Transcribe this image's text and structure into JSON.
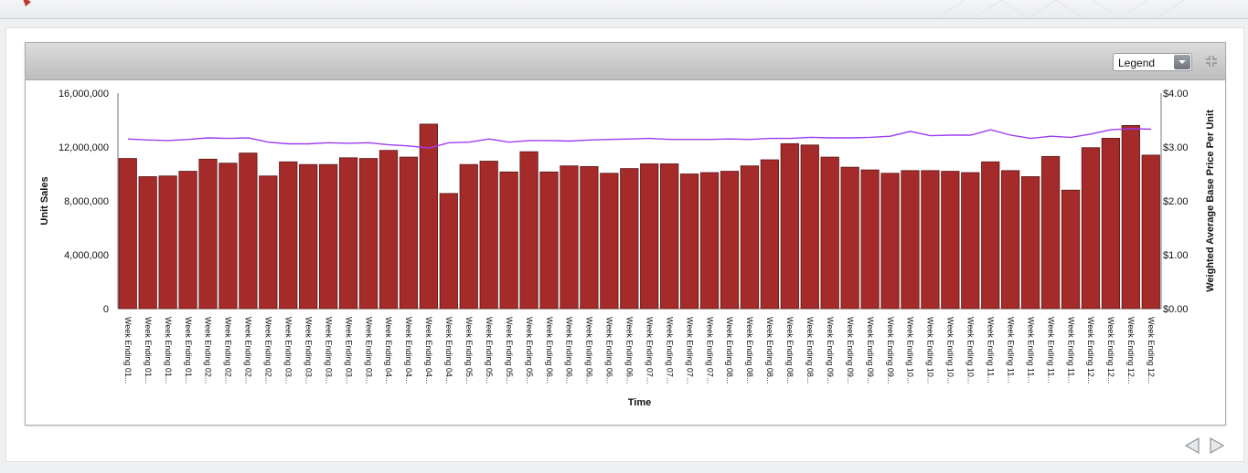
{
  "header": {
    "icon": "app-logo-icon"
  },
  "panel": {
    "legend_select": "Legend",
    "collapse_icon": "collapse-icon"
  },
  "colors": {
    "bar": "#a52a2a",
    "line": "#9b3cf2",
    "axis": "#777777"
  },
  "nav": {
    "prev_icon": "prev-arrow-icon",
    "next_icon": "next-arrow-icon"
  },
  "chart_data": {
    "type": "bar",
    "xlabel": "Time",
    "ylabel": "Unit Sales",
    "y2label": "Weighted Average Base Price Per Unit",
    "ylim": [
      0,
      16000000
    ],
    "y2lim": [
      0,
      4
    ],
    "yticks": [
      "16,000,000",
      "12,000,000",
      "8,000,000",
      "4,000,000",
      "0"
    ],
    "y2ticks": [
      "$4.00",
      "$3.00",
      "$2.00",
      "$1.00",
      "$0.00"
    ],
    "legend": "hidden",
    "categories": [
      "Week Ending 01...",
      "Week Ending 01...",
      "Week Ending 01...",
      "Week Ending 01...",
      "Week Ending 02...",
      "Week Ending 02...",
      "Week Ending 02...",
      "Week Ending 02...",
      "Week Ending 03...",
      "Week Ending 03...",
      "Week Ending 03...",
      "Week Ending 03...",
      "Week Ending 03...",
      "Week Ending 04...",
      "Week Ending 04...",
      "Week Ending 04...",
      "Week Ending 04...",
      "Week Ending 05...",
      "Week Ending 05...",
      "Week Ending 05...",
      "Week Ending 05...",
      "Week Ending 06...",
      "Week Ending 06...",
      "Week Ending 06...",
      "Week Ending 06...",
      "Week Ending 06...",
      "Week Ending 07...",
      "Week Ending 07...",
      "Week Ending 07...",
      "Week Ending 07...",
      "Week Ending 08...",
      "Week Ending 08...",
      "Week Ending 08...",
      "Week Ending 08...",
      "Week Ending 08...",
      "Week Ending 09...",
      "Week Ending 09...",
      "Week Ending 09...",
      "Week Ending 09...",
      "Week Ending 10...",
      "Week Ending 10...",
      "Week Ending 10...",
      "Week Ending 10...",
      "Week Ending 11...",
      "Week Ending 11...",
      "Week Ending 11...",
      "Week Ending 11...",
      "Week Ending 11...",
      "Week Ending 12...",
      "Week Ending 12...",
      "Week Ending 12...",
      "Week Ending 12..."
    ],
    "series": [
      {
        "type": "bar",
        "values": [
          11150000,
          9800000,
          9850000,
          10200000,
          11100000,
          10800000,
          11550000,
          9850000,
          10900000,
          10700000,
          10700000,
          11200000,
          11150000,
          11750000,
          11250000,
          13700000,
          8550000,
          10700000,
          10950000,
          10150000,
          11650000,
          10150000,
          10600000,
          10550000,
          10050000,
          10400000,
          10750000,
          10750000,
          10000000,
          10100000,
          10200000,
          10600000,
          11050000,
          12250000,
          12150000,
          11250000,
          10500000,
          10300000,
          10050000,
          10250000,
          10250000,
          10200000,
          10100000,
          10900000,
          10250000,
          9800000,
          11300000,
          8800000,
          11950000,
          12650000,
          13600000,
          11400000
        ]
      },
      {
        "type": "line",
        "axis": "right",
        "values": [
          3.15,
          3.13,
          3.12,
          3.14,
          3.17,
          3.16,
          3.17,
          3.09,
          3.06,
          3.06,
          3.08,
          3.07,
          3.08,
          3.04,
          3.02,
          2.98,
          3.08,
          3.09,
          3.15,
          3.09,
          3.12,
          3.12,
          3.11,
          3.13,
          3.14,
          3.15,
          3.16,
          3.14,
          3.14,
          3.14,
          3.15,
          3.14,
          3.16,
          3.16,
          3.18,
          3.17,
          3.17,
          3.18,
          3.2,
          3.29,
          3.21,
          3.22,
          3.22,
          3.32,
          3.22,
          3.16,
          3.2,
          3.18,
          3.24,
          3.32,
          3.34,
          3.33
        ]
      }
    ]
  }
}
